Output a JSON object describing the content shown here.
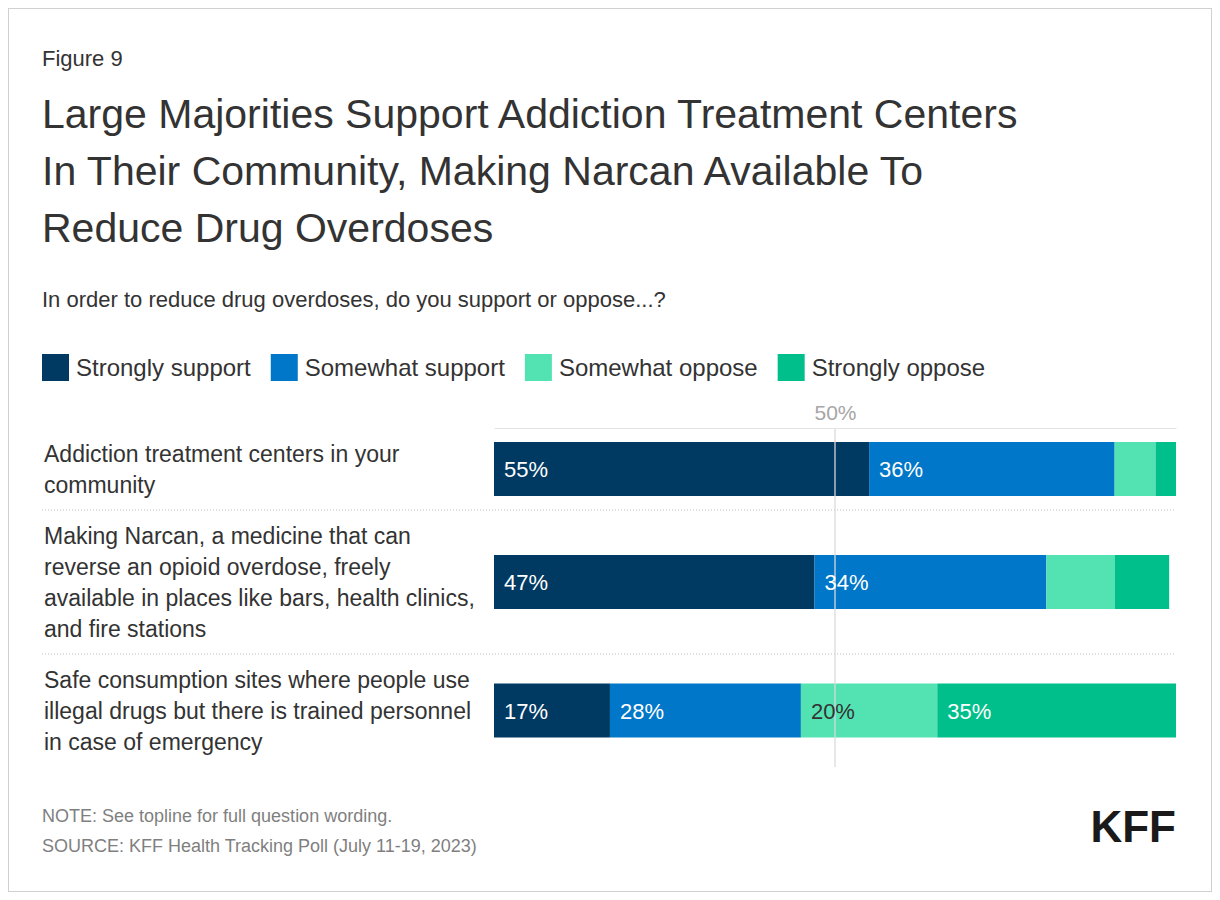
{
  "chart_data": {
    "type": "bar",
    "orientation": "horizontal",
    "stacked": true,
    "data_labels": true,
    "grid": true,
    "tick_labels": "x",
    "legend": "top",
    "figure_label": "Figure 9",
    "title": "Large Majorities Support Addiction Treatment Centers In Their Community, Making Narcan Available To Reduce Drug Overdoses",
    "subtitle": "In order to reduce drug overdoses, do you support or oppose...?",
    "categories": [
      "Addiction treatment centers in your community",
      "Making Narcan, a medicine that can reverse an opioid overdose, freely available in places like bars, health clinics, and fire stations",
      "Safe consumption sites where people use illegal drugs but there is trained personnel in case of emergency"
    ],
    "xlim": [
      0,
      100
    ],
    "xticks": [
      {
        "value": 50,
        "label": "50%"
      }
    ],
    "series": [
      {
        "name": "Strongly support",
        "color": "#003a63",
        "values": [
          55,
          47,
          17
        ],
        "value_labels": [
          "55%",
          "47%",
          "17%"
        ]
      },
      {
        "name": "Somewhat support",
        "color": "#0077c8",
        "values": [
          36,
          34,
          28
        ],
        "value_labels": [
          "36%",
          "34%",
          "28%"
        ]
      },
      {
        "name": "Somewhat oppose",
        "color": "#53e3b3",
        "values": [
          6,
          10,
          20
        ],
        "value_labels": [
          null,
          null,
          "20%"
        ]
      },
      {
        "name": "Strongly oppose",
        "color": "#00bf8a",
        "values": [
          3,
          8,
          35
        ],
        "value_labels": [
          null,
          null,
          "35%"
        ]
      }
    ],
    "note": "NOTE: See topline for full question wording.",
    "source": "SOURCE: KFF Health Tracking Poll (July 11-19, 2023)",
    "logo": "KFF"
  }
}
